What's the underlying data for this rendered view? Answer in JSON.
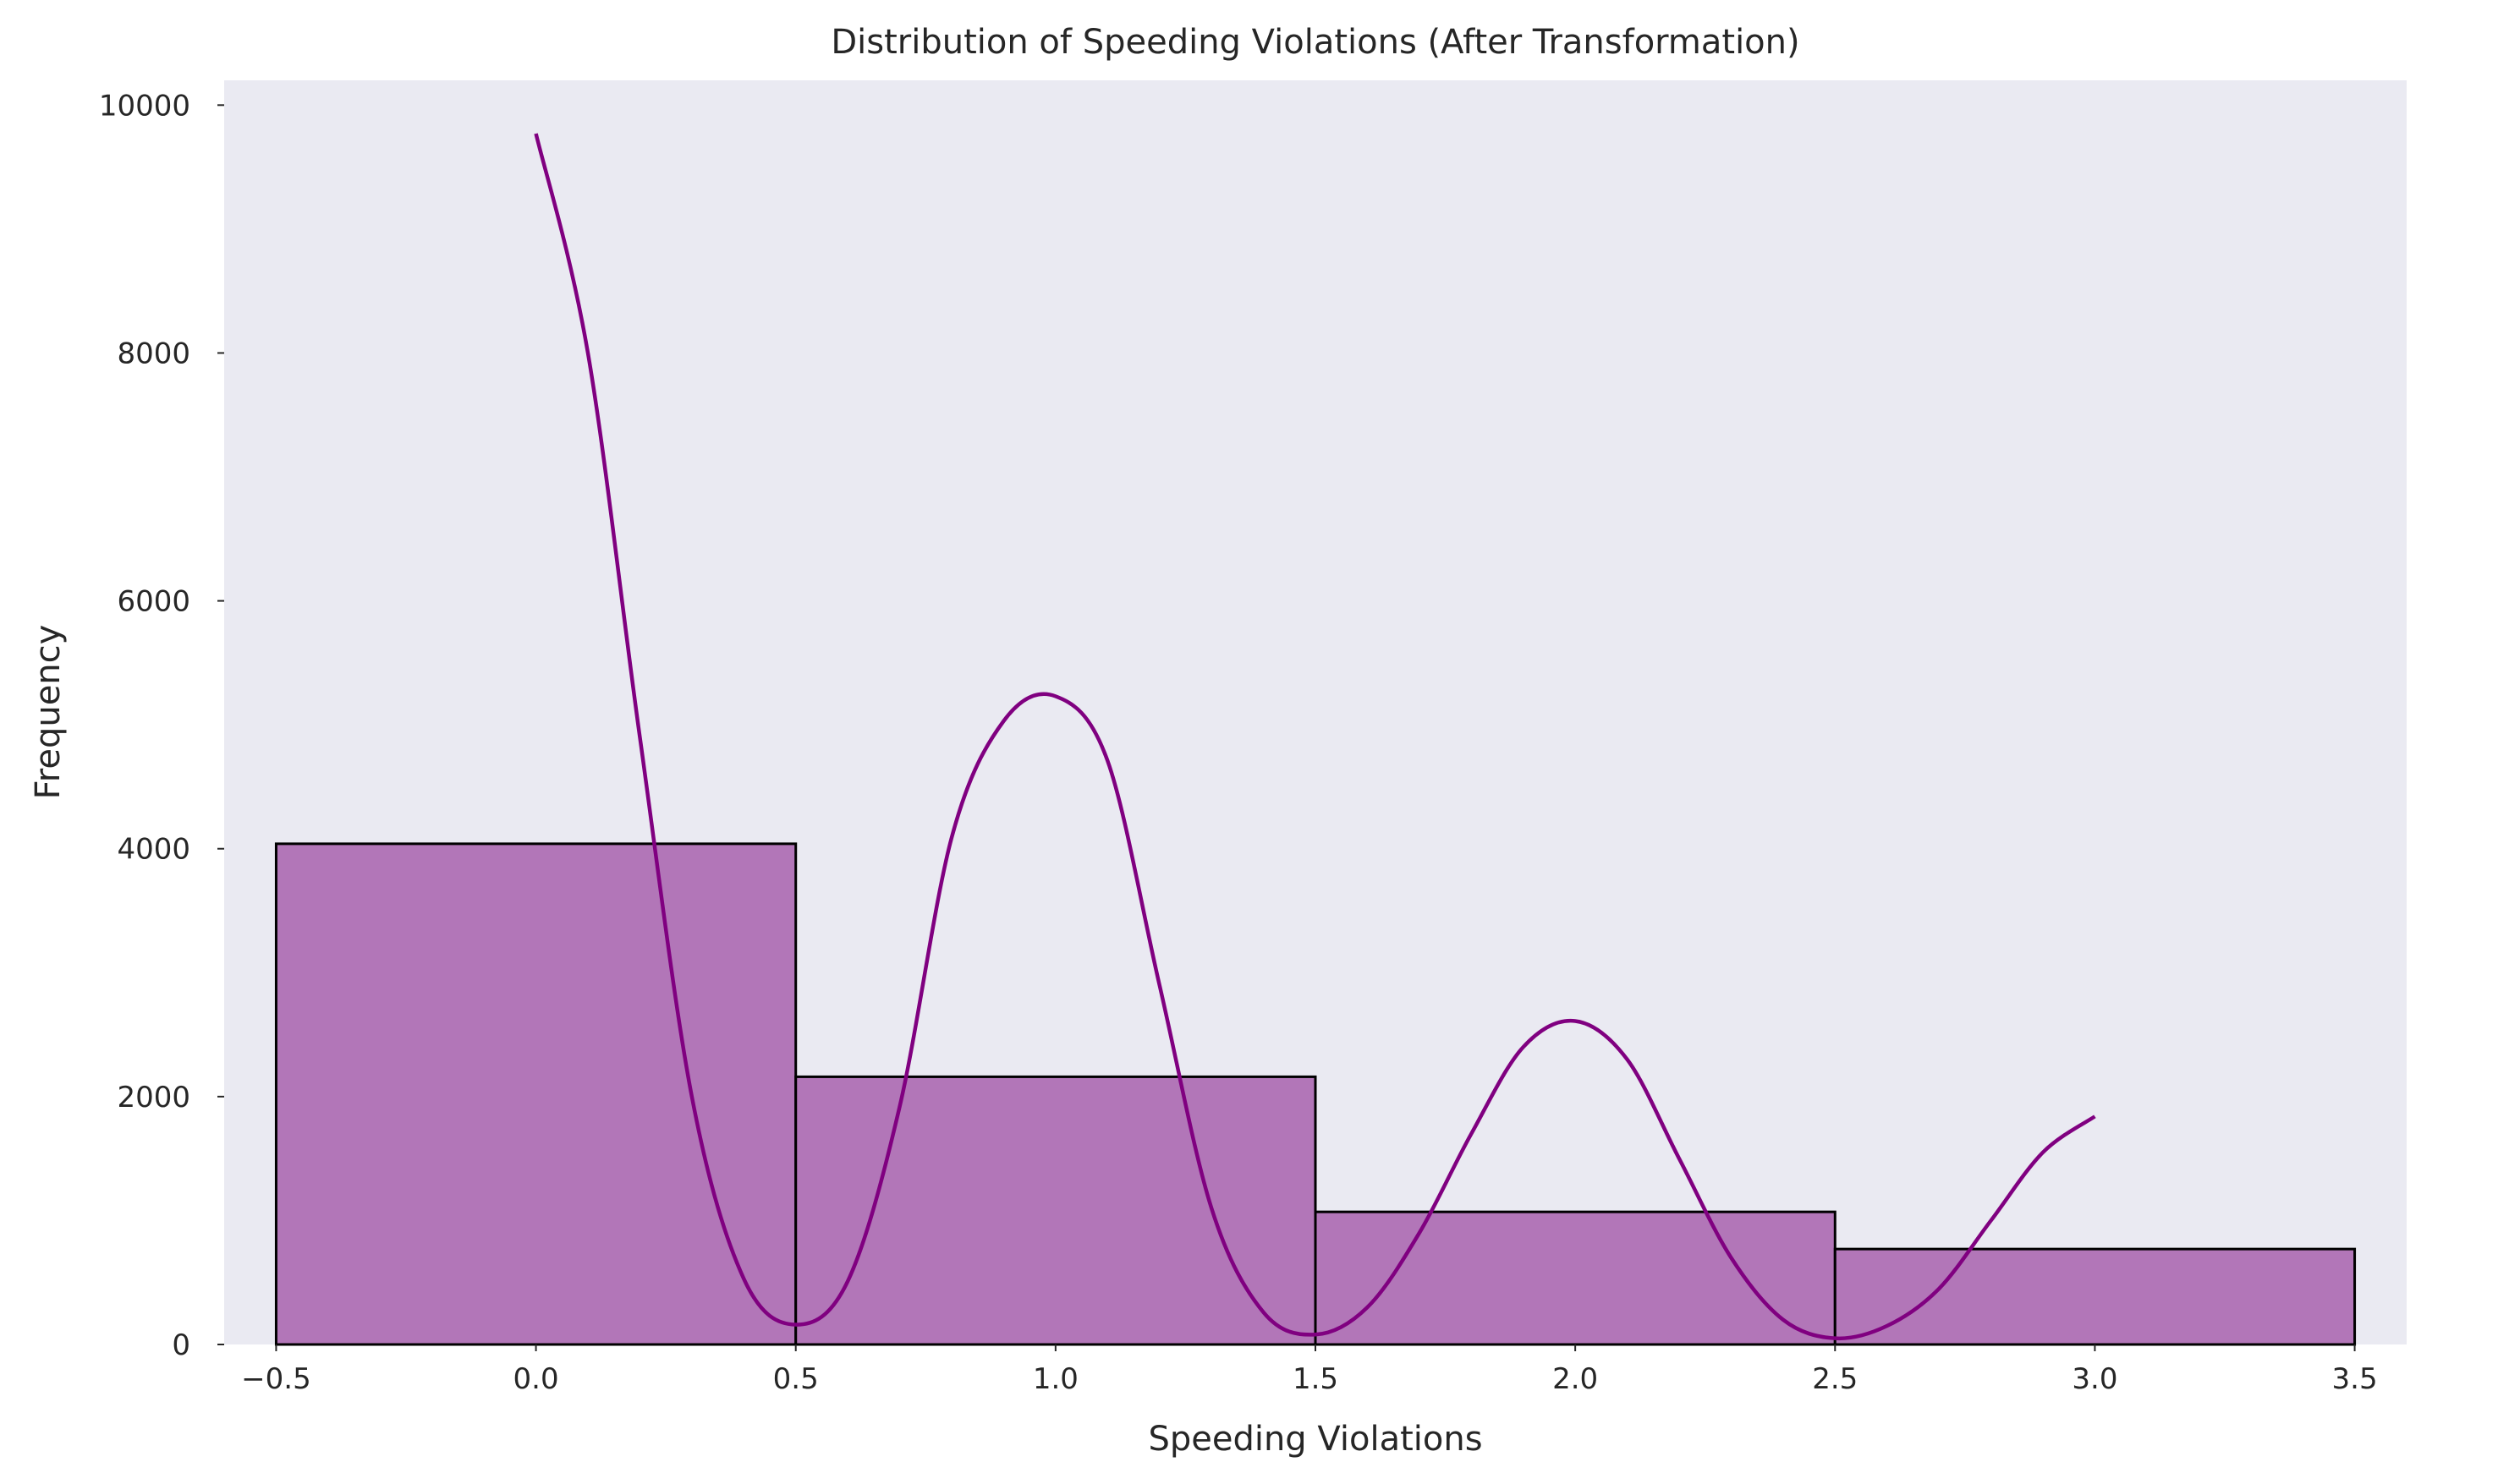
{
  "chart_data": {
    "type": "bar",
    "title": "Distribution of Speeding Violations (After Transformation)",
    "xlabel": "Speeding Violations",
    "ylabel": "Frequency",
    "xlim": [
      -0.6,
      3.6
    ],
    "ylim": [
      0,
      10200
    ],
    "grid": false,
    "legend": "none",
    "x_ticks": [
      "−0.5",
      "0.0",
      "0.5",
      "1.0",
      "1.5",
      "2.0",
      "2.5",
      "3.0",
      "3.5"
    ],
    "x_tick_values": [
      -0.5,
      0.0,
      0.5,
      1.0,
      1.5,
      2.0,
      2.5,
      3.0,
      3.5
    ],
    "y_ticks": [
      "0",
      "2000",
      "4000",
      "6000",
      "8000",
      "10000"
    ],
    "y_tick_values": [
      0,
      2000,
      4000,
      6000,
      8000,
      10000
    ],
    "bins": [
      {
        "x0": -0.5,
        "x1": 0.5,
        "count": 4040
      },
      {
        "x0": 0.5,
        "x1": 1.5,
        "count": 2160
      },
      {
        "x0": 1.5,
        "x1": 2.5,
        "count": 1070
      },
      {
        "x0": 2.5,
        "x1": 3.5,
        "count": 770
      }
    ],
    "kde_curve": {
      "x": [
        0.0,
        0.1,
        0.2,
        0.3,
        0.4,
        0.5,
        0.6,
        0.7,
        0.8,
        0.9,
        1.0,
        1.1,
        1.2,
        1.3,
        1.4,
        1.5,
        1.6,
        1.7,
        1.8,
        1.9,
        2.0,
        2.1,
        2.2,
        2.3,
        2.4,
        2.5,
        2.6,
        2.7,
        2.8,
        2.9,
        3.0
      ],
      "y": [
        9770,
        8000,
        4900,
        2000,
        530,
        160,
        510,
        1920,
        4090,
        5030,
        5230,
        4710,
        2900,
        1100,
        260,
        80,
        300,
        900,
        1700,
        2400,
        2610,
        2300,
        1500,
        700,
        200,
        50,
        150,
        450,
        1000,
        1550,
        1840
      ]
    },
    "colors": {
      "background": "#eaeaf2",
      "bar_fill": "#b276b8",
      "bar_edge": "#000000",
      "kde_line": "#800080"
    }
  }
}
